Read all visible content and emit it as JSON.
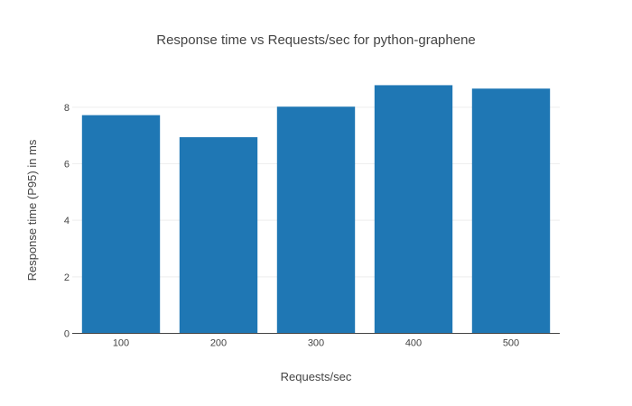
{
  "chart_data": {
    "type": "bar",
    "title": "Response time vs Requests/sec for python-graphene",
    "xlabel": "Requests/sec",
    "ylabel": "Response time (P95) in ms",
    "categories": [
      "100",
      "200",
      "300",
      "400",
      "500"
    ],
    "values": [
      7.72,
      6.94,
      8.02,
      8.78,
      8.66
    ],
    "ylim": [
      0,
      9.4
    ],
    "yticks": [
      "0",
      "2",
      "4",
      "6",
      "8"
    ],
    "grid": true,
    "legend": "none",
    "bar_color": "#1f77b4"
  }
}
